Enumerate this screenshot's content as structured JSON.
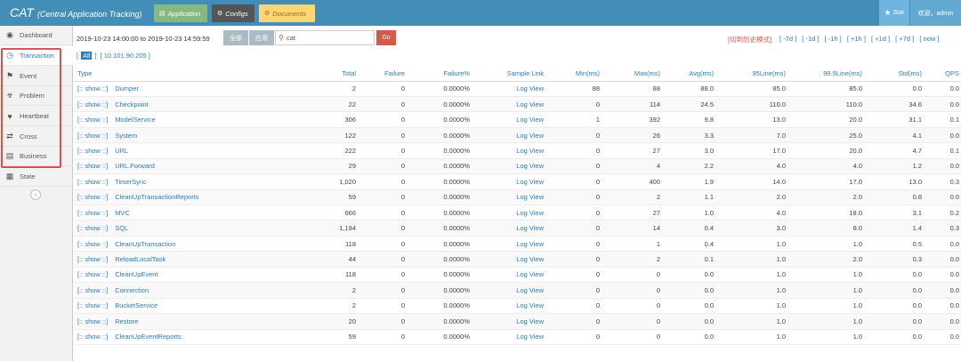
{
  "header": {
    "brand": "CAT",
    "brand_sub": "(Central Application Tracking)",
    "nav": [
      {
        "label": "Application",
        "icon": "chart-icon"
      },
      {
        "label": "Configs",
        "icon": "gears-icon"
      },
      {
        "label": "Documents",
        "icon": "gear-icon"
      }
    ],
    "star_label": "Star",
    "user_label": "欢迎，admin"
  },
  "sidebar": {
    "items": [
      {
        "label": "Dashboard",
        "icon": "dashboard-icon"
      },
      {
        "label": "Transaction",
        "icon": "clock-icon"
      },
      {
        "label": "Event",
        "icon": "flag-icon"
      },
      {
        "label": "Problem",
        "icon": "bug-icon"
      },
      {
        "label": "Heartbeat",
        "icon": "heart-icon"
      },
      {
        "label": "Cross",
        "icon": "random-icon"
      },
      {
        "label": "Business",
        "icon": "list-icon"
      },
      {
        "label": "State",
        "icon": "chart-icon"
      }
    ],
    "collapse_icon": "«"
  },
  "filter": {
    "time_range": "2019-10-23 14:00:00 to 2019-10-23 14:59:59",
    "btn_full": "全部",
    "btn_apply": "应用",
    "search_value": "cat",
    "go_label": "Go",
    "history_label": "[切到历史模式]",
    "ranges": [
      "[ -7d ]",
      "[ -1d ]",
      "[ -1h ]",
      "[ +1h ]",
      "[ +1d ]",
      "[ +7d ]",
      "[ now ]"
    ]
  },
  "ips": {
    "open": "[",
    "all": "All",
    "close": "]",
    "address": "[ 10.101.90.205 ]"
  },
  "table": {
    "headers": [
      "Type",
      "Total",
      "Failure",
      "Failure%",
      "Sample Link",
      "Min(ms)",
      "Max(ms)",
      "Avg(ms)",
      "95Line(ms)",
      "99.9Line(ms)",
      "Std(ms)",
      "QPS"
    ],
    "show_label": "[:: show ::]",
    "sample_label": "Log View",
    "rows": [
      {
        "name": "Dumper",
        "total": "2",
        "failure": "0",
        "failure_pct": "0.0000%",
        "min": "88",
        "max": "88",
        "avg": "88.0",
        "l95": "85.0",
        "l999": "85.0",
        "std": "0.0",
        "qps": "0.0"
      },
      {
        "name": "Checkpoint",
        "total": "22",
        "failure": "0",
        "failure_pct": "0.0000%",
        "min": "0",
        "max": "114",
        "avg": "24.5",
        "l95": "110.0",
        "l999": "110.0",
        "std": "34.6",
        "qps": "0.0"
      },
      {
        "name": "ModelService",
        "total": "306",
        "failure": "0",
        "failure_pct": "0.0000%",
        "min": "1",
        "max": "392",
        "avg": "9.8",
        "l95": "13.0",
        "l999": "20.0",
        "std": "31.1",
        "qps": "0.1"
      },
      {
        "name": "System",
        "total": "122",
        "failure": "0",
        "failure_pct": "0.0000%",
        "min": "0",
        "max": "26",
        "avg": "3.3",
        "l95": "7.0",
        "l999": "25.0",
        "std": "4.1",
        "qps": "0.0"
      },
      {
        "name": "URL",
        "total": "222",
        "failure": "0",
        "failure_pct": "0.0000%",
        "min": "0",
        "max": "27",
        "avg": "3.0",
        "l95": "17.0",
        "l999": "20.0",
        "std": "4.7",
        "qps": "0.1"
      },
      {
        "name": "URL.Forward",
        "total": "29",
        "failure": "0",
        "failure_pct": "0.0000%",
        "min": "0",
        "max": "4",
        "avg": "2.2",
        "l95": "4.0",
        "l999": "4.0",
        "std": "1.2",
        "qps": "0.0"
      },
      {
        "name": "TimerSync",
        "total": "1,020",
        "failure": "0",
        "failure_pct": "0.0000%",
        "min": "0",
        "max": "400",
        "avg": "1.9",
        "l95": "14.0",
        "l999": "17.0",
        "std": "13.0",
        "qps": "0.3"
      },
      {
        "name": "CleanUpTransactionReports",
        "total": "59",
        "failure": "0",
        "failure_pct": "0.0000%",
        "min": "0",
        "max": "2",
        "avg": "1.1",
        "l95": "2.0",
        "l999": "2.0",
        "std": "0.8",
        "qps": "0.0"
      },
      {
        "name": "MVC",
        "total": "666",
        "failure": "0",
        "failure_pct": "0.0000%",
        "min": "0",
        "max": "27",
        "avg": "1.0",
        "l95": "4.0",
        "l999": "18.0",
        "std": "3.1",
        "qps": "0.2"
      },
      {
        "name": "SQL",
        "total": "1,194",
        "failure": "0",
        "failure_pct": "0.0000%",
        "min": "0",
        "max": "14",
        "avg": "0.4",
        "l95": "3.0",
        "l999": "8.0",
        "std": "1.4",
        "qps": "0.3"
      },
      {
        "name": "CleanUpTransaction",
        "total": "118",
        "failure": "0",
        "failure_pct": "0.0000%",
        "min": "0",
        "max": "1",
        "avg": "0.4",
        "l95": "1.0",
        "l999": "1.0",
        "std": "0.5",
        "qps": "0.0"
      },
      {
        "name": "ReloadLocalTask",
        "total": "44",
        "failure": "0",
        "failure_pct": "0.0000%",
        "min": "0",
        "max": "2",
        "avg": "0.1",
        "l95": "1.0",
        "l999": "2.0",
        "std": "0.3",
        "qps": "0.0"
      },
      {
        "name": "CleanUpEvent",
        "total": "118",
        "failure": "0",
        "failure_pct": "0.0000%",
        "min": "0",
        "max": "0",
        "avg": "0.0",
        "l95": "1.0",
        "l999": "1.0",
        "std": "0.0",
        "qps": "0.0"
      },
      {
        "name": "Connection",
        "total": "2",
        "failure": "0",
        "failure_pct": "0.0000%",
        "min": "0",
        "max": "0",
        "avg": "0.0",
        "l95": "1.0",
        "l999": "1.0",
        "std": "0.0",
        "qps": "0.0"
      },
      {
        "name": "BucketService",
        "total": "2",
        "failure": "0",
        "failure_pct": "0.0000%",
        "min": "0",
        "max": "0",
        "avg": "0.0",
        "l95": "1.0",
        "l999": "1.0",
        "std": "0.0",
        "qps": "0.0"
      },
      {
        "name": "Restore",
        "total": "20",
        "failure": "0",
        "failure_pct": "0.0000%",
        "min": "0",
        "max": "0",
        "avg": "0.0",
        "l95": "1.0",
        "l999": "1.0",
        "std": "0.0",
        "qps": "0.0"
      },
      {
        "name": "CleanUpEventReports",
        "total": "59",
        "failure": "0",
        "failure_pct": "0.0000%",
        "min": "0",
        "max": "0",
        "avg": "0.0",
        "l95": "1.0",
        "l999": "1.0",
        "std": "0.0",
        "qps": "0.0"
      }
    ]
  },
  "colors": {
    "navbar": "#438eb9",
    "link": "#2b7dbc",
    "go_button": "#d15b47",
    "highlight_box": "#d9534f"
  }
}
